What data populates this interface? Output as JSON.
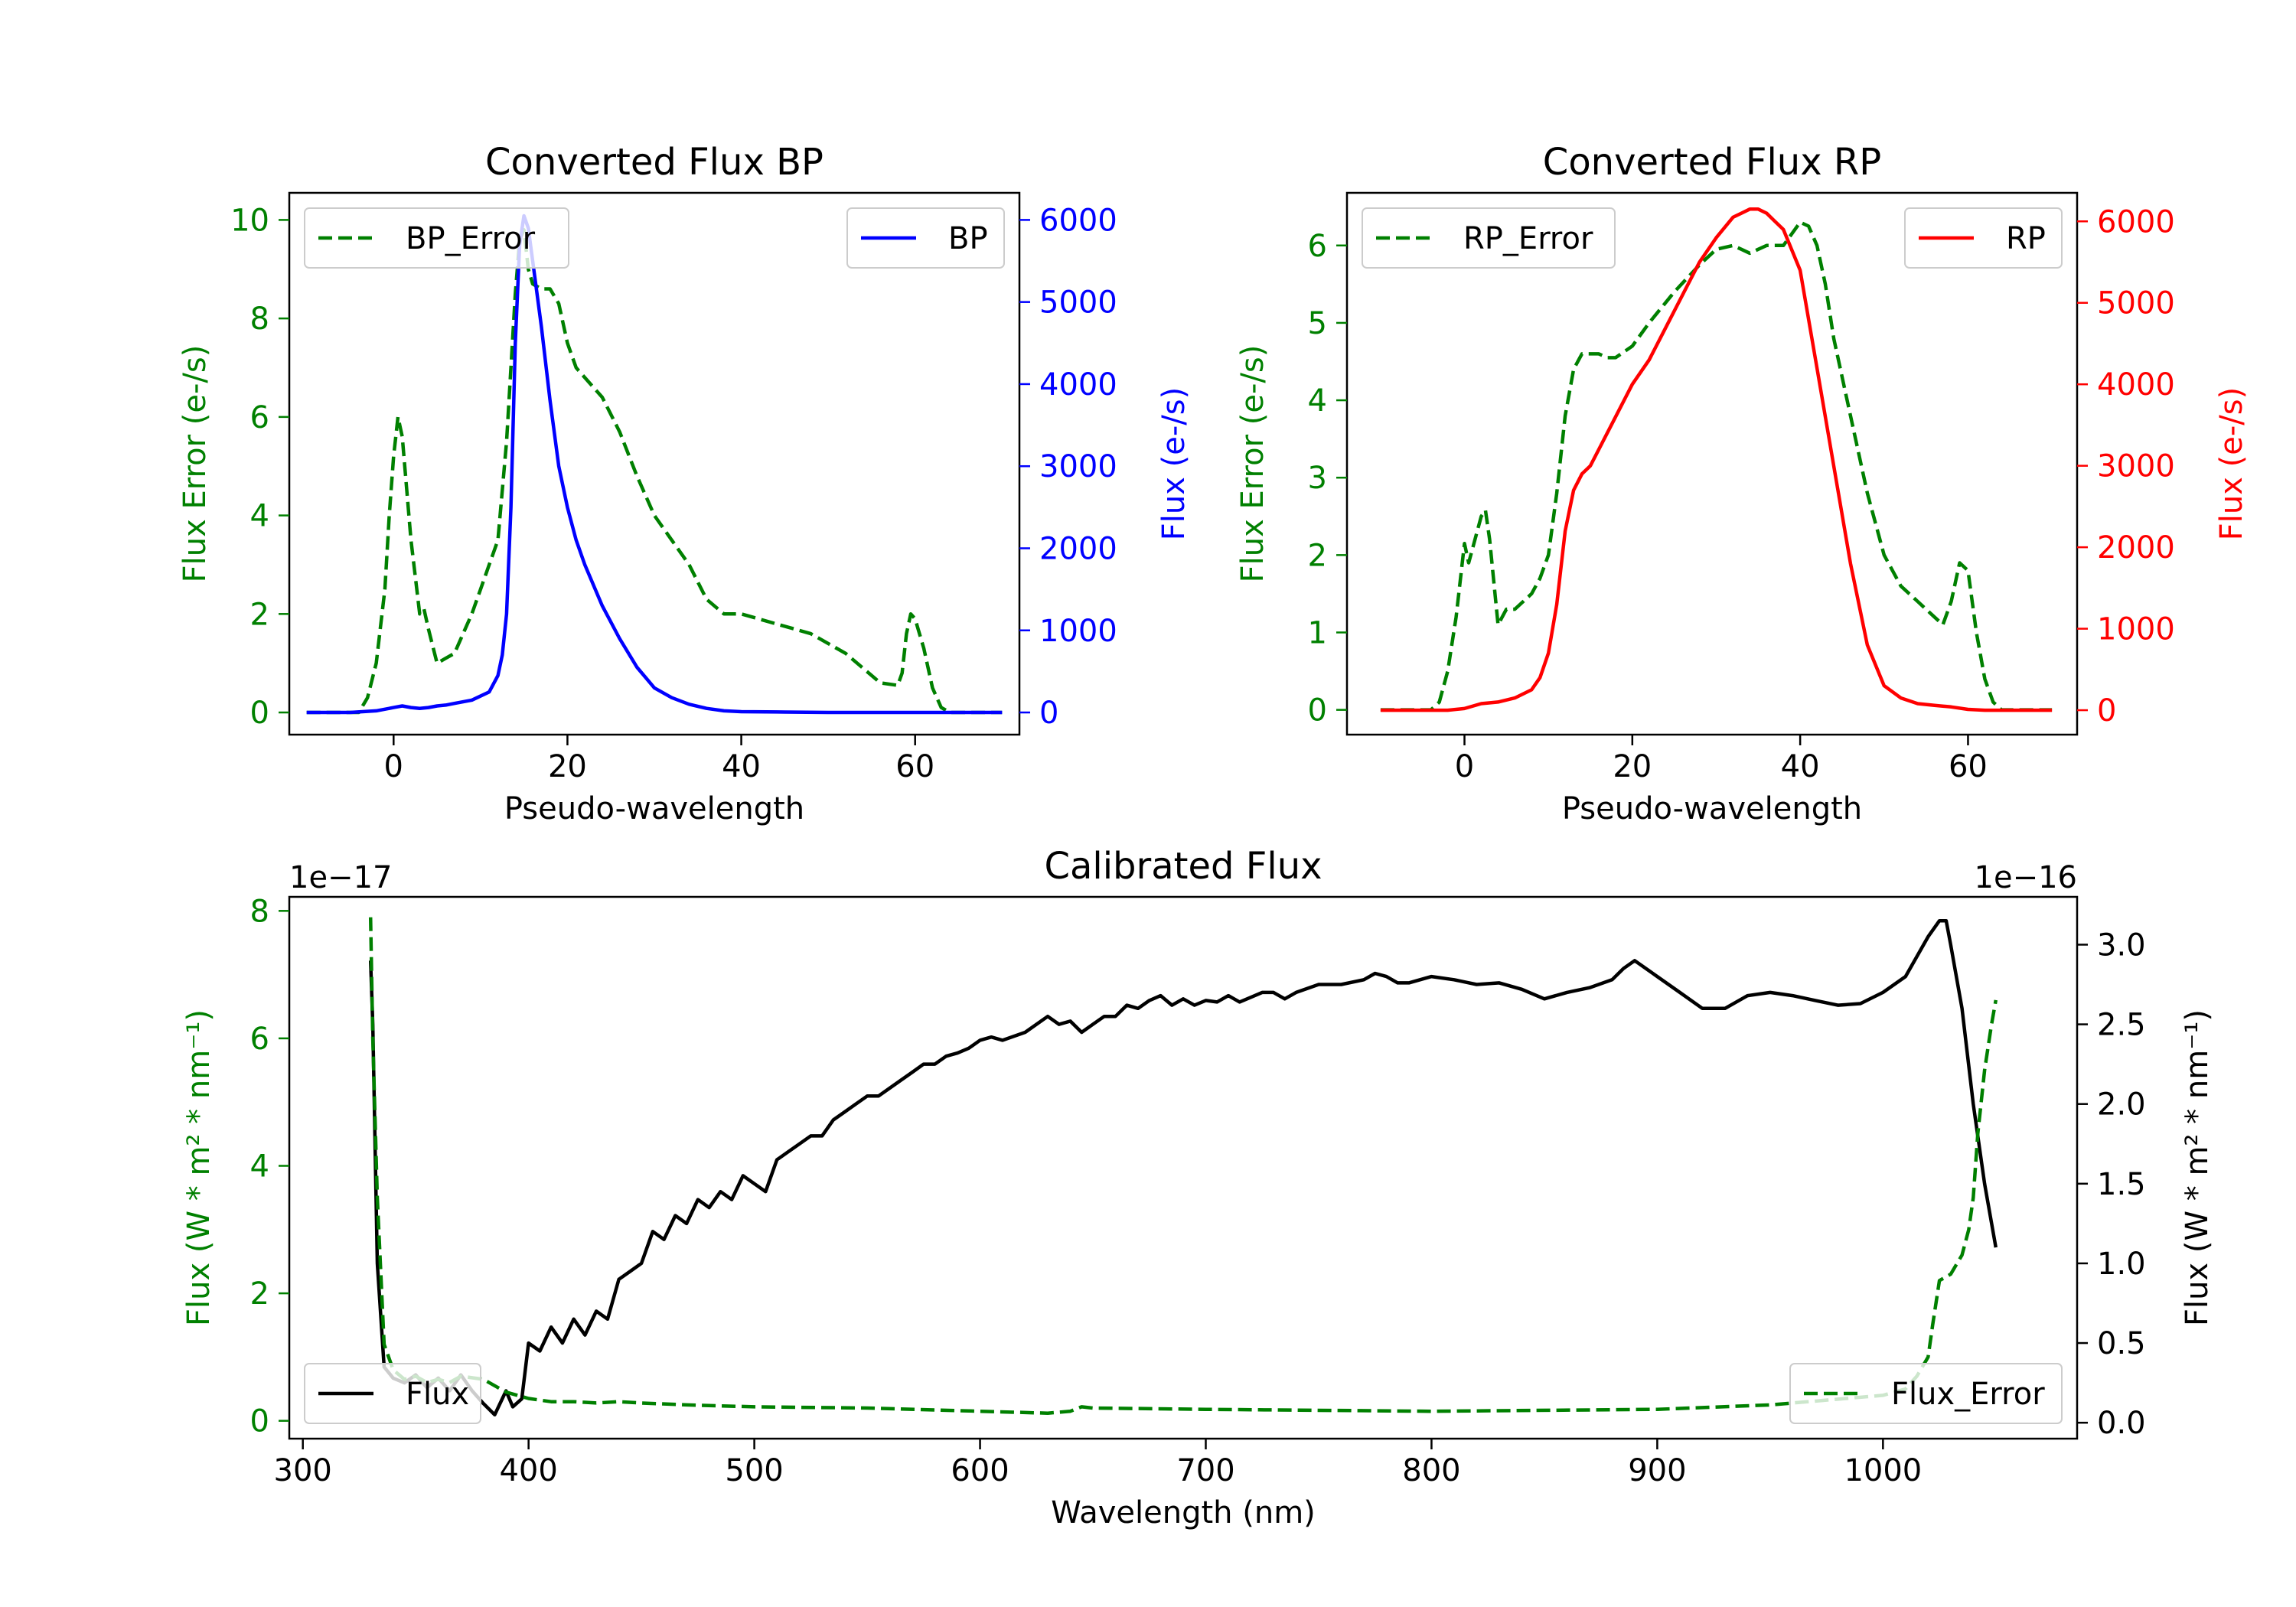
{
  "chart_data": [
    {
      "type": "line",
      "title": "Converted Flux BP",
      "xlabel": "Pseudo-wavelength",
      "ylabel_left": "Flux Error (e-/s)",
      "ylabel_right": "Flux (e-/s)",
      "xlim": [
        -12,
        72
      ],
      "ylim_left": [
        -0.45,
        10.55
      ],
      "ylim_right": [
        -270,
        6330
      ],
      "xticks": [
        0,
        20,
        40,
        60
      ],
      "yticks_left": [
        0,
        2,
        4,
        6,
        8,
        10
      ],
      "yticks_right": [
        0,
        1000,
        2000,
        3000,
        4000,
        5000,
        6000
      ],
      "colors": {
        "error": "#008000",
        "flux": "#0000ff",
        "left_axis": "#008000",
        "right_axis": "#0000ff"
      },
      "legend": {
        "error": "BP_Error",
        "flux": "BP",
        "error_position": "upper-left",
        "flux_position": "upper-right"
      },
      "series": [
        {
          "name": "BP_Error",
          "axis": "left",
          "style": "dashed",
          "x": [
            -10,
            -4,
            -3,
            -2,
            -1,
            -0.5,
            0,
            0.5,
            1,
            2,
            3,
            3.5,
            4,
            5,
            6,
            7,
            8,
            9,
            10,
            11,
            12,
            13,
            14,
            14.5,
            15,
            15.5,
            16,
            17,
            18,
            19,
            20,
            21,
            22,
            24,
            26,
            28,
            30,
            32,
            34,
            36,
            38,
            40,
            42,
            44,
            46,
            48,
            50,
            52,
            54,
            56,
            58,
            58.5,
            59,
            59.5,
            60,
            61,
            62,
            63,
            64,
            65,
            66,
            68,
            70
          ],
          "y": [
            0,
            0,
            0.3,
            1.0,
            2.5,
            4.0,
            5.2,
            6.0,
            5.6,
            3.5,
            2.0,
            2.1,
            1.7,
            1.0,
            1.1,
            1.2,
            1.6,
            2.0,
            2.5,
            3.0,
            3.5,
            5.5,
            8.5,
            9.6,
            9.8,
            9.0,
            8.7,
            8.6,
            8.6,
            8.3,
            7.5,
            7.0,
            6.8,
            6.4,
            5.7,
            4.8,
            4.0,
            3.5,
            3.0,
            2.3,
            2.0,
            2.0,
            1.9,
            1.8,
            1.7,
            1.6,
            1.4,
            1.2,
            0.9,
            0.6,
            0.55,
            0.8,
            1.6,
            2.0,
            1.9,
            1.3,
            0.5,
            0.1,
            0.0,
            0,
            0,
            0,
            0
          ]
        },
        {
          "name": "BP",
          "axis": "right",
          "style": "solid",
          "x": [
            -10,
            -5,
            -2,
            0,
            1,
            2,
            3,
            4,
            5,
            6,
            7,
            8,
            9,
            10,
            11,
            12,
            12.5,
            13,
            13.5,
            14,
            14.5,
            15,
            15.5,
            16,
            17,
            18,
            19,
            20,
            21,
            22,
            24,
            26,
            28,
            30,
            32,
            34,
            36,
            38,
            40,
            45,
            50,
            55,
            60,
            65,
            70
          ],
          "y": [
            0,
            0,
            20,
            60,
            80,
            60,
            50,
            60,
            80,
            90,
            110,
            130,
            150,
            200,
            250,
            450,
            700,
            1200,
            2500,
            4500,
            5700,
            6050,
            5900,
            5500,
            4700,
            3800,
            3000,
            2500,
            2100,
            1800,
            1300,
            900,
            550,
            300,
            180,
            100,
            50,
            20,
            10,
            5,
            0,
            0,
            0,
            0,
            0
          ]
        }
      ]
    },
    {
      "type": "line",
      "title": "Converted Flux RP",
      "xlabel": "Pseudo-wavelength",
      "ylabel_left": "Flux Error (e-/s)",
      "ylabel_right": "Flux (e-/s)",
      "xlim": [
        -14,
        73
      ],
      "ylim_left": [
        -0.32,
        6.68
      ],
      "ylim_right": [
        -300,
        6350
      ],
      "xticks": [
        0,
        20,
        40,
        60
      ],
      "yticks_left": [
        0,
        1,
        2,
        3,
        4,
        5,
        6
      ],
      "yticks_right": [
        0,
        1000,
        2000,
        3000,
        4000,
        5000,
        6000
      ],
      "colors": {
        "error": "#008000",
        "flux": "#ff0000",
        "left_axis": "#008000",
        "right_axis": "#ff0000"
      },
      "legend": {
        "error": "RP_Error",
        "flux": "RP",
        "error_position": "upper-left",
        "flux_position": "upper-right"
      },
      "series": [
        {
          "name": "RP_Error",
          "axis": "left",
          "style": "dashed",
          "x": [
            -10,
            -4,
            -3,
            -2,
            -1,
            0,
            0.5,
            1,
            2,
            2.5,
            3,
            4,
            5,
            6,
            7,
            8,
            9,
            10,
            11,
            12,
            13,
            14,
            15,
            16,
            17,
            18,
            20,
            22,
            25,
            28,
            30,
            32,
            33,
            34,
            35,
            36,
            38,
            40,
            41,
            42,
            43,
            44,
            46,
            48,
            50,
            52,
            54,
            55,
            56,
            57,
            58,
            59,
            60,
            61,
            62,
            63,
            64,
            65,
            70
          ],
          "y": [
            0,
            0,
            0.1,
            0.5,
            1.2,
            2.15,
            1.9,
            2.1,
            2.5,
            2.58,
            2.2,
            1.1,
            1.3,
            1.3,
            1.4,
            1.5,
            1.7,
            2.0,
            2.8,
            3.8,
            4.4,
            4.6,
            4.6,
            4.6,
            4.55,
            4.55,
            4.7,
            5.0,
            5.4,
            5.75,
            5.95,
            6.0,
            5.95,
            5.9,
            5.95,
            6.0,
            6.0,
            6.3,
            6.25,
            6.0,
            5.5,
            4.8,
            3.8,
            2.8,
            2.0,
            1.6,
            1.4,
            1.3,
            1.2,
            1.1,
            1.4,
            1.9,
            1.8,
            1.0,
            0.4,
            0.1,
            0.0,
            0,
            0
          ]
        },
        {
          "name": "RP",
          "axis": "right",
          "style": "solid",
          "x": [
            -10,
            -2,
            0,
            2,
            4,
            6,
            8,
            9,
            10,
            11,
            12,
            13,
            14,
            15,
            16,
            18,
            20,
            22,
            24,
            26,
            28,
            30,
            32,
            33,
            34,
            35,
            36,
            37,
            38,
            40,
            42,
            44,
            46,
            48,
            50,
            52,
            54,
            56,
            58,
            60,
            62,
            65,
            70
          ],
          "y": [
            0,
            0,
            20,
            80,
            100,
            150,
            250,
            400,
            700,
            1300,
            2200,
            2700,
            2900,
            3000,
            3200,
            3600,
            4000,
            4300,
            4700,
            5100,
            5500,
            5800,
            6050,
            6100,
            6150,
            6150,
            6100,
            6000,
            5900,
            5400,
            4200,
            3000,
            1800,
            800,
            300,
            150,
            80,
            60,
            40,
            10,
            0,
            0,
            0
          ]
        }
      ]
    },
    {
      "type": "line",
      "title": "Calibrated Flux",
      "xlabel": "Wavelength (nm)",
      "ylabel_left": "Flux (W * m² * nm⁻¹)",
      "ylabel_right": "Flux (W * m² * nm⁻¹)",
      "offset_left": "1e−17",
      "offset_right": "1e−16",
      "xlim": [
        294,
        1086
      ],
      "ylim_left": [
        -0.28,
        8.22
      ],
      "ylim_right": [
        -0.1,
        3.3
      ],
      "xticks": [
        300,
        400,
        500,
        600,
        700,
        800,
        900,
        1000
      ],
      "yticks_left": [
        0,
        2,
        4,
        6,
        8
      ],
      "yticks_right": [
        0.0,
        0.5,
        1.0,
        1.5,
        2.0,
        2.5,
        3.0
      ],
      "colors": {
        "error": "#008000",
        "flux": "#000000",
        "left_axis": "#008000",
        "right_axis": "#000000"
      },
      "legend": {
        "error": "Flux_Error",
        "flux": "Flux",
        "error_position": "lower-right",
        "flux_position": "lower-left"
      },
      "series": [
        {
          "name": "Flux",
          "axis": "right",
          "style": "solid",
          "x": [
            330,
            331,
            333,
            336,
            340,
            345,
            350,
            355,
            360,
            365,
            370,
            375,
            380,
            385,
            390,
            393,
            397,
            400,
            405,
            410,
            415,
            420,
            425,
            430,
            435,
            440,
            445,
            450,
            455,
            460,
            465,
            470,
            475,
            480,
            485,
            490,
            495,
            500,
            505,
            510,
            515,
            520,
            525,
            530,
            535,
            540,
            545,
            550,
            555,
            560,
            565,
            570,
            575,
            580,
            585,
            590,
            595,
            600,
            605,
            610,
            620,
            630,
            635,
            640,
            645,
            650,
            655,
            660,
            665,
            670,
            675,
            680,
            685,
            690,
            695,
            700,
            705,
            710,
            715,
            720,
            725,
            730,
            735,
            740,
            750,
            760,
            770,
            775,
            780,
            785,
            790,
            800,
            810,
            820,
            830,
            840,
            850,
            860,
            870,
            880,
            885,
            890,
            900,
            910,
            920,
            930,
            940,
            950,
            960,
            970,
            980,
            990,
            1000,
            1010,
            1020,
            1025,
            1028,
            1030,
            1035,
            1040,
            1045,
            1050
          ],
          "y": [
            2.9,
            2.5,
            1.0,
            0.35,
            0.28,
            0.25,
            0.3,
            0.22,
            0.28,
            0.2,
            0.3,
            0.2,
            0.12,
            0.05,
            0.2,
            0.1,
            0.15,
            0.5,
            0.45,
            0.6,
            0.5,
            0.65,
            0.55,
            0.7,
            0.65,
            0.9,
            0.95,
            1.0,
            1.2,
            1.15,
            1.3,
            1.25,
            1.4,
            1.35,
            1.45,
            1.4,
            1.55,
            1.5,
            1.45,
            1.65,
            1.7,
            1.75,
            1.8,
            1.8,
            1.9,
            1.95,
            2.0,
            2.05,
            2.05,
            2.1,
            2.15,
            2.2,
            2.25,
            2.25,
            2.3,
            2.32,
            2.35,
            2.4,
            2.42,
            2.4,
            2.45,
            2.55,
            2.5,
            2.52,
            2.45,
            2.5,
            2.55,
            2.55,
            2.62,
            2.6,
            2.65,
            2.68,
            2.62,
            2.66,
            2.62,
            2.65,
            2.64,
            2.68,
            2.64,
            2.67,
            2.7,
            2.7,
            2.66,
            2.7,
            2.75,
            2.75,
            2.78,
            2.82,
            2.8,
            2.76,
            2.76,
            2.8,
            2.78,
            2.75,
            2.76,
            2.72,
            2.66,
            2.7,
            2.73,
            2.78,
            2.85,
            2.9,
            2.8,
            2.7,
            2.6,
            2.6,
            2.68,
            2.7,
            2.68,
            2.65,
            2.62,
            2.63,
            2.7,
            2.8,
            3.05,
            3.15,
            3.15,
            3.0,
            2.6,
            2.0,
            1.5,
            1.1
          ]
        },
        {
          "name": "Flux_Error",
          "axis": "left",
          "style": "dashed",
          "x": [
            330,
            331,
            333,
            336,
            340,
            345,
            350,
            355,
            360,
            365,
            370,
            380,
            390,
            400,
            410,
            420,
            430,
            440,
            450,
            470,
            500,
            550,
            600,
            630,
            640,
            645,
            650,
            700,
            800,
            900,
            950,
            1000,
            1010,
            1015,
            1020,
            1022,
            1025,
            1030,
            1035,
            1038,
            1040,
            1042,
            1045,
            1048,
            1050
          ],
          "y": [
            7.9,
            6.0,
            3.5,
            1.2,
            0.8,
            0.65,
            0.7,
            0.6,
            0.65,
            0.6,
            0.7,
            0.65,
            0.45,
            0.35,
            0.3,
            0.3,
            0.28,
            0.3,
            0.28,
            0.25,
            0.22,
            0.2,
            0.15,
            0.12,
            0.15,
            0.22,
            0.2,
            0.18,
            0.15,
            0.18,
            0.25,
            0.4,
            0.5,
            0.7,
            1.0,
            1.5,
            2.2,
            2.3,
            2.6,
            3.0,
            3.5,
            4.5,
            5.5,
            6.2,
            6.6
          ]
        }
      ]
    }
  ]
}
